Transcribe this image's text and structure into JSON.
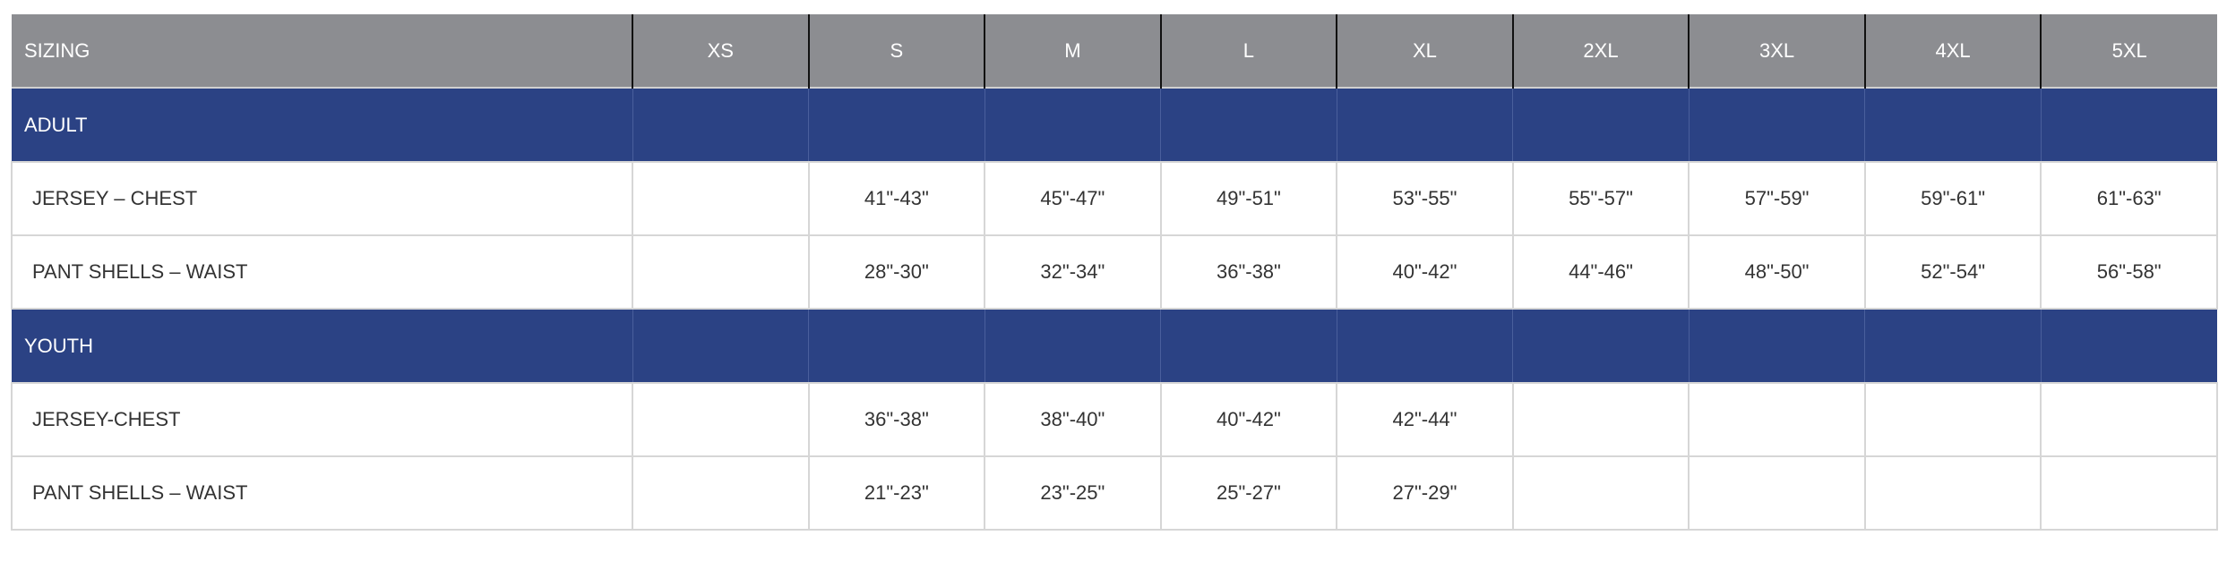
{
  "colors": {
    "header_bg": "#8c8d91",
    "section_bg": "#2b4284",
    "text": "#333333"
  },
  "header": [
    "SIZING",
    "XS",
    "S",
    "M",
    "L",
    "XL",
    "2XL",
    "3XL",
    "4XL",
    "5XL"
  ],
  "sections": [
    {
      "label": "ADULT",
      "rows": [
        {
          "label": "JERSEY – CHEST",
          "values": [
            "",
            "41\"-43\"",
            "45\"-47\"",
            "49\"-51\"",
            "53\"-55\"",
            "55\"-57\"",
            "57\"-59\"",
            "59\"-61\"",
            "61\"-63\""
          ]
        },
        {
          "label": "PANT SHELLS – WAIST",
          "values": [
            "",
            "28\"-30\"",
            "32\"-34\"",
            "36\"-38\"",
            "40\"-42\"",
            "44\"-46\"",
            "48\"-50\"",
            "52\"-54\"",
            "56\"-58\""
          ]
        }
      ]
    },
    {
      "label": "YOUTH",
      "rows": [
        {
          "label": "JERSEY-CHEST",
          "values": [
            "",
            "36\"-38\"",
            "38\"-40\"",
            "40\"-42\"",
            "42\"-44\"",
            "",
            "",
            "",
            ""
          ]
        },
        {
          "label": "PANT SHELLS – WAIST",
          "values": [
            "",
            "21\"-23\"",
            "23\"-25\"",
            "25\"-27\"",
            "27\"-29\"",
            "",
            "",
            "",
            ""
          ]
        }
      ]
    }
  ]
}
